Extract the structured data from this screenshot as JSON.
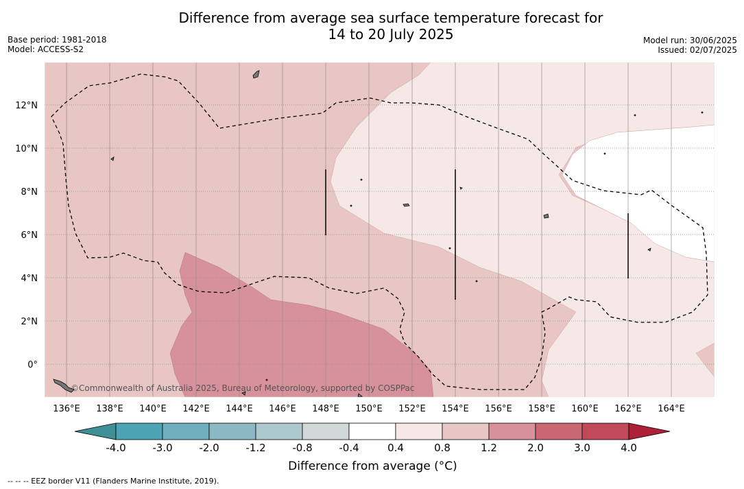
{
  "title_line1": "Difference from average sea surface temperature forecast for",
  "title_line2": "14 to 20 July 2025",
  "base_period": "Base period: 1981-2018",
  "model": "Model: ACCESS-S2",
  "model_run": "Model run: 30/06/2025",
  "issued": "Issued: 02/07/2025",
  "copyright": "©Commonwealth of Australia 2025, Bureau of Meteorology, supported by COSPPac",
  "lat_labels": [
    "12°N",
    "10°N",
    "8°N",
    "6°N",
    "4°N",
    "2°N",
    "0°"
  ],
  "lon_labels": [
    "136°E",
    "138°E",
    "140°E",
    "142°E",
    "144°E",
    "146°E",
    "148°E",
    "150°E",
    "152°E",
    "154°E",
    "156°E",
    "158°E",
    "160°E",
    "162°E",
    "164°E"
  ],
  "colorbar": {
    "ticks": [
      "-4.0",
      "-3.0",
      "-2.0",
      "-1.2",
      "-0.8",
      "-0.4",
      "0.4",
      "0.8",
      "1.2",
      "2.0",
      "3.0",
      "4.0"
    ],
    "colors": [
      "#3f8f97",
      "#4ba4b3",
      "#6fafbe",
      "#8cb8c3",
      "#acc8cc",
      "#d2d8d8",
      "#ffffff",
      "#f5e8e7",
      "#e7c6c3",
      "#d6919a",
      "#c96874",
      "#c04a58",
      "#ad2038"
    ],
    "title": "Difference from average (°C)"
  },
  "map_colors": {
    "band_0_4_to_0_8": "#f5e8e7",
    "band_0_8_to_1_2": "#e7c6c3",
    "band_1_2_to_2_0": "#d6919a",
    "band_neutral": "#ffffff"
  },
  "legend_footer": "-- -- -- EEZ border V11 (Flanders Marine Institute, 2019)."
}
